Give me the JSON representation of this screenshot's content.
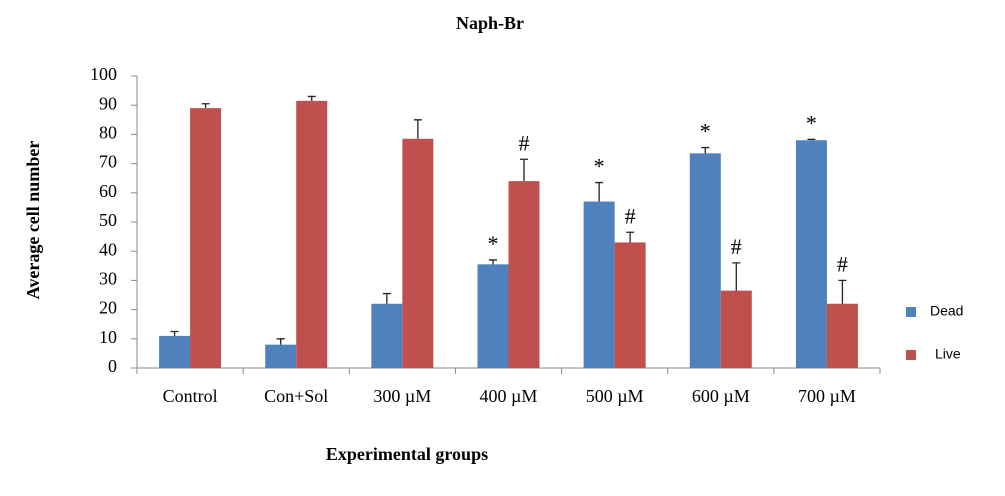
{
  "chart_data": {
    "type": "bar",
    "title": "Naph-Br",
    "x_label": "Experimental groups",
    "y_label": "Average cell number",
    "categories": [
      "Control",
      "Con+Sol",
      "300 µM",
      "400 µM",
      "500 µM",
      "600 µM",
      "700 µM"
    ],
    "series": [
      {
        "name": "Dead",
        "color": "#4f81bd",
        "values": [
          11,
          8,
          22,
          35.5,
          57,
          73.5,
          78
        ],
        "errors": [
          1.5,
          2,
          3.5,
          1.5,
          6.5,
          2,
          0.3
        ],
        "annotations": [
          null,
          null,
          null,
          "*",
          "*",
          "*",
          "*"
        ]
      },
      {
        "name": "Live",
        "color": "#c0504d",
        "values": [
          89,
          91.5,
          78.5,
          64,
          43,
          26.5,
          22
        ],
        "errors": [
          1.5,
          1.5,
          6.5,
          7.5,
          3.5,
          9.5,
          8
        ],
        "annotations": [
          null,
          null,
          null,
          "#",
          "#",
          "#",
          "#"
        ]
      }
    ],
    "ylim": [
      0,
      100
    ],
    "yticks": [
      0,
      10,
      20,
      30,
      40,
      50,
      60,
      70,
      80,
      90,
      100
    ],
    "grid": false,
    "legend": "right"
  }
}
